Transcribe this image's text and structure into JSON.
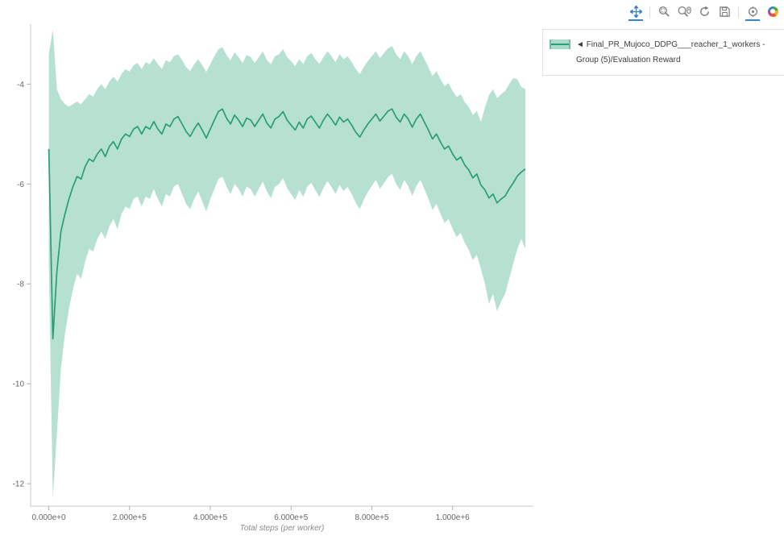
{
  "legend": {
    "marker": "◄",
    "label": "Final_PR_Mujoco_DDPG___reacher_1_workers - Group (5)/Evaluation Reward"
  },
  "toolbar": {
    "tools": [
      {
        "name": "pan",
        "active": true
      },
      {
        "name": "box-zoom",
        "active": false
      },
      {
        "name": "wheel-zoom",
        "active": false
      },
      {
        "name": "reset",
        "active": false
      },
      {
        "name": "save",
        "active": false
      },
      {
        "name": "hover",
        "active": true
      },
      {
        "name": "bokeh-logo",
        "active": false
      }
    ]
  },
  "chart_data": {
    "type": "line",
    "series_name": "Final_PR_Mujoco_DDPG___reacher_1_workers - Group (5)/Evaluation Reward",
    "xlabel": "Total steps (per worker)",
    "ylabel": "",
    "xlim": [
      -45000,
      1200000
    ],
    "ylim": [
      -12.45,
      -2.8
    ],
    "grid": false,
    "legend_position": "top-right",
    "colors": {
      "line": "#2a9d76",
      "band": "#a9dcc8",
      "axis": "#c9c9c9",
      "tick": "#b0b0b0",
      "tick_label": "#666666"
    },
    "x_ticks": {
      "values": [
        0,
        200000,
        400000,
        600000,
        800000,
        1000000
      ],
      "labels": [
        "0.000e+0",
        "2.000e+5",
        "4.000e+5",
        "6.000e+5",
        "8.000e+5",
        "1.000e+6"
      ]
    },
    "y_ticks": {
      "values": [
        -4,
        -6,
        -8,
        -10,
        -12
      ],
      "labels": [
        "-4",
        "-6",
        "-8",
        "-10",
        "-12"
      ]
    },
    "x0": 0,
    "dx": 10000,
    "mean": [
      -5.3,
      -9.1,
      -7.75,
      -6.95,
      -6.6,
      -6.3,
      -6.05,
      -5.85,
      -5.9,
      -5.65,
      -5.5,
      -5.55,
      -5.4,
      -5.3,
      -5.45,
      -5.25,
      -5.15,
      -5.3,
      -5.1,
      -5.0,
      -5.05,
      -4.9,
      -4.85,
      -5.0,
      -4.85,
      -4.9,
      -4.75,
      -4.9,
      -5.0,
      -4.8,
      -4.85,
      -4.7,
      -4.65,
      -4.8,
      -4.95,
      -5.05,
      -4.9,
      -4.78,
      -4.92,
      -5.08,
      -4.9,
      -4.72,
      -4.55,
      -4.5,
      -4.68,
      -4.8,
      -4.62,
      -4.72,
      -4.85,
      -4.68,
      -4.72,
      -4.85,
      -4.72,
      -4.6,
      -4.78,
      -4.88,
      -4.7,
      -4.65,
      -4.55,
      -4.72,
      -4.82,
      -4.92,
      -4.76,
      -4.88,
      -4.7,
      -4.64,
      -4.76,
      -4.88,
      -4.72,
      -4.6,
      -4.7,
      -4.82,
      -4.66,
      -4.76,
      -4.7,
      -4.82,
      -4.96,
      -5.06,
      -4.92,
      -4.8,
      -4.7,
      -4.6,
      -4.74,
      -4.64,
      -4.54,
      -4.5,
      -4.66,
      -4.76,
      -4.6,
      -4.7,
      -4.86,
      -4.7,
      -4.6,
      -4.76,
      -4.92,
      -5.1,
      -5.0,
      -5.16,
      -5.3,
      -5.24,
      -5.4,
      -5.52,
      -5.46,
      -5.62,
      -5.72,
      -5.88,
      -5.8,
      -6.02,
      -6.12,
      -6.28,
      -6.2,
      -6.38,
      -6.3,
      -6.24,
      -6.1,
      -5.98,
      -5.84,
      -5.76,
      -5.7
    ],
    "upper": [
      -3.4,
      -2.9,
      -4.1,
      -4.3,
      -4.4,
      -4.45,
      -4.4,
      -4.35,
      -4.4,
      -4.3,
      -4.2,
      -4.25,
      -4.1,
      -4.0,
      -4.1,
      -3.95,
      -3.85,
      -3.95,
      -3.8,
      -3.7,
      -3.75,
      -3.62,
      -3.58,
      -3.7,
      -3.56,
      -3.6,
      -3.48,
      -3.6,
      -3.7,
      -3.52,
      -3.56,
      -3.44,
      -3.4,
      -3.52,
      -3.66,
      -3.74,
      -3.6,
      -3.5,
      -3.62,
      -3.76,
      -3.6,
      -3.44,
      -3.3,
      -3.26,
      -3.42,
      -3.52,
      -3.36,
      -3.46,
      -3.58,
      -3.42,
      -3.46,
      -3.58,
      -3.46,
      -3.34,
      -3.52,
      -3.6,
      -3.44,
      -3.4,
      -3.3,
      -3.46,
      -3.54,
      -3.64,
      -3.5,
      -3.6,
      -3.44,
      -3.38,
      -3.5,
      -3.6,
      -3.46,
      -3.34,
      -3.44,
      -3.56,
      -3.4,
      -3.5,
      -3.44,
      -3.56,
      -3.7,
      -3.8,
      -3.66,
      -3.54,
      -3.44,
      -3.34,
      -3.48,
      -3.38,
      -3.28,
      -3.24,
      -3.4,
      -3.5,
      -3.34,
      -3.44,
      -3.6,
      -3.44,
      -3.34,
      -3.5,
      -3.66,
      -3.84,
      -3.74,
      -3.9,
      -4.04,
      -3.98,
      -4.14,
      -4.26,
      -4.2,
      -4.36,
      -4.46,
      -4.62,
      -4.54,
      -4.76,
      -4.46,
      -4.22,
      -4.1,
      -4.28,
      -4.2,
      -4.14,
      -4.0,
      -3.88,
      -3.9,
      -4.06,
      -4.1
    ],
    "lower": [
      -7.6,
      -12.3,
      -11.0,
      -9.7,
      -9.0,
      -8.5,
      -8.1,
      -7.8,
      -7.9,
      -7.55,
      -7.3,
      -7.35,
      -7.1,
      -6.95,
      -7.1,
      -6.85,
      -6.7,
      -6.9,
      -6.6,
      -6.45,
      -6.5,
      -6.3,
      -6.25,
      -6.45,
      -6.25,
      -6.3,
      -6.1,
      -6.3,
      -6.45,
      -6.2,
      -6.25,
      -6.05,
      -6.0,
      -6.2,
      -6.4,
      -6.5,
      -6.3,
      -6.15,
      -6.35,
      -6.55,
      -6.3,
      -6.1,
      -5.9,
      -5.85,
      -6.05,
      -6.2,
      -6.0,
      -6.1,
      -6.25,
      -6.05,
      -6.1,
      -6.25,
      -6.1,
      -5.95,
      -6.15,
      -6.28,
      -6.06,
      -6.0,
      -5.88,
      -6.08,
      -6.2,
      -6.32,
      -6.12,
      -6.26,
      -6.05,
      -5.98,
      -6.12,
      -6.26,
      -6.08,
      -5.94,
      -6.06,
      -6.2,
      -6.02,
      -6.14,
      -6.06,
      -6.2,
      -6.38,
      -6.5,
      -6.32,
      -6.16,
      -6.04,
      -5.92,
      -6.1,
      -5.98,
      -5.86,
      -5.8,
      -6.0,
      -6.12,
      -5.92,
      -6.04,
      -6.24,
      -6.04,
      -5.92,
      -6.1,
      -6.3,
      -6.52,
      -6.4,
      -6.6,
      -6.78,
      -6.7,
      -6.9,
      -7.06,
      -6.98,
      -7.18,
      -7.32,
      -7.52,
      -7.42,
      -7.7,
      -8.0,
      -8.4,
      -8.2,
      -8.55,
      -8.35,
      -8.2,
      -7.9,
      -7.6,
      -7.3,
      -7.1,
      -7.3
    ]
  }
}
